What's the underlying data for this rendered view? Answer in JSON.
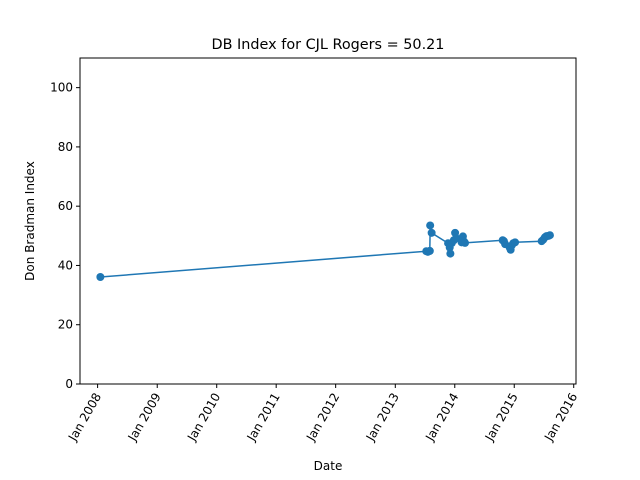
{
  "chart_data": {
    "type": "line",
    "title": "DB Index for CJL Rogers = 50.21",
    "xlabel": "Date",
    "ylabel": "Don Bradman Index",
    "x_tick_labels": [
      "Jan 2008",
      "Jan 2009",
      "Jan 2010",
      "Jan 2011",
      "Jan 2012",
      "Jan 2013",
      "Jan 2014",
      "Jan 2015",
      "Jan 2016"
    ],
    "x_tick_dates": [
      "2008-01-01",
      "2009-01-01",
      "2010-01-01",
      "2011-01-01",
      "2012-01-01",
      "2013-01-01",
      "2014-01-01",
      "2015-01-01",
      "2016-01-01"
    ],
    "y_tick_labels": [
      "0",
      "20",
      "40",
      "60",
      "80",
      "100"
    ],
    "xlim": [
      "2007-09-15",
      "2016-01-15"
    ],
    "ylim": [
      0,
      110
    ],
    "grid": false,
    "color": "#1f77b4",
    "series": [
      {
        "points": [
          {
            "x": "2008-01-18",
            "y": 36.1
          },
          {
            "x": "2013-07-10",
            "y": 44.8
          },
          {
            "x": "2013-07-20",
            "y": 44.6
          },
          {
            "x": "2013-08-01",
            "y": 44.9
          },
          {
            "x": "2013-08-03",
            "y": 53.5
          },
          {
            "x": "2013-08-12",
            "y": 51.0
          },
          {
            "x": "2013-11-21",
            "y": 47.5
          },
          {
            "x": "2013-12-01",
            "y": 46.0
          },
          {
            "x": "2013-12-05",
            "y": 44.0
          },
          {
            "x": "2013-12-13",
            "y": 47.5
          },
          {
            "x": "2013-12-26",
            "y": 48.5
          },
          {
            "x": "2014-01-03",
            "y": 51.0
          },
          {
            "x": "2014-01-10",
            "y": 49.2
          },
          {
            "x": "2014-02-12",
            "y": 47.8
          },
          {
            "x": "2014-02-20",
            "y": 49.8
          },
          {
            "x": "2014-02-28",
            "y": 48.0
          },
          {
            "x": "2014-03-05",
            "y": 47.6
          },
          {
            "x": "2014-10-22",
            "y": 48.5
          },
          {
            "x": "2014-10-30",
            "y": 48.2
          },
          {
            "x": "2014-11-06",
            "y": 47.2
          },
          {
            "x": "2014-12-04",
            "y": 46.0
          },
          {
            "x": "2014-12-10",
            "y": 45.3
          },
          {
            "x": "2014-12-17",
            "y": 46.8
          },
          {
            "x": "2014-12-26",
            "y": 47.5
          },
          {
            "x": "2015-01-06",
            "y": 47.8
          },
          {
            "x": "2015-06-18",
            "y": 48.2
          },
          {
            "x": "2015-06-28",
            "y": 48.7
          },
          {
            "x": "2015-07-08",
            "y": 49.5
          },
          {
            "x": "2015-07-18",
            "y": 49.9
          },
          {
            "x": "2015-07-31",
            "y": 50.0
          },
          {
            "x": "2015-08-08",
            "y": 50.2
          }
        ]
      }
    ]
  }
}
